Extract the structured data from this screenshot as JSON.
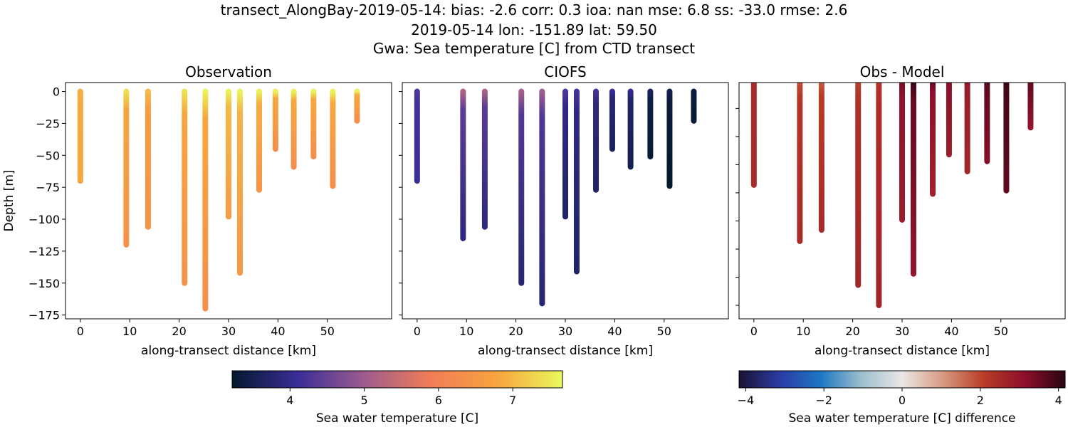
{
  "title": {
    "line1": "transect_AlongBay-2019-05-14: bias: -2.6  corr: 0.3  ioa: nan  mse: 6.8  ss: -33.0  rmse: 2.6",
    "line2": "2019-05-14 lon: -151.89 lat: 59.50",
    "line3": "Gwa: Sea temperature [C] from CTD transect"
  },
  "chart_data": [
    {
      "type": "scatter",
      "title": "Observation",
      "xlabel": "along-transect distance [km]",
      "ylabel": "Depth [m]",
      "xlim": [
        -3,
        63
      ],
      "ylim": [
        -178,
        7
      ],
      "xticks": [
        0,
        10,
        20,
        30,
        40,
        50
      ],
      "yticks": [
        0,
        -25,
        -50,
        -75,
        -100,
        -125,
        -150,
        -175
      ],
      "stations_km": [
        0,
        9.3,
        13.7,
        21.1,
        25.3,
        30.0,
        32.3,
        36.2,
        39.5,
        43.2,
        47.2,
        51.1,
        56.0
      ],
      "max_depth_m": [
        70,
        120,
        106,
        150,
        170,
        98,
        142,
        77,
        45,
        59,
        51,
        74,
        23
      ],
      "surface_value": [
        6.9,
        7.4,
        7.0,
        7.4,
        7.6,
        7.6,
        7.6,
        7.6,
        7.6,
        7.6,
        7.6,
        7.6,
        7.6
      ],
      "bottom_value": [
        6.8,
        6.4,
        6.4,
        6.4,
        6.3,
        6.6,
        6.5,
        6.4,
        6.3,
        6.3,
        6.3,
        6.3,
        6.3
      ]
    },
    {
      "type": "scatter",
      "title": "CIOFS",
      "xlabel": "along-transect distance [km]",
      "ylim": [
        -178,
        7
      ],
      "stations_km": [
        0,
        9.3,
        13.7,
        21.1,
        25.3,
        30.0,
        32.3,
        36.2,
        39.5,
        43.2,
        47.2,
        51.1,
        56.0
      ],
      "max_depth_m": [
        70,
        115,
        106,
        150,
        166,
        98,
        141,
        77,
        45,
        59,
        51,
        74,
        23
      ],
      "surface_value": [
        4.3,
        5.2,
        5.1,
        5.1,
        5.0,
        4.3,
        4.2,
        4.2,
        4.1,
        4.0,
        3.6,
        3.5,
        3.4
      ],
      "bottom_value": [
        4.1,
        3.9,
        3.9,
        3.8,
        3.8,
        3.7,
        3.7,
        3.7,
        3.6,
        3.5,
        3.3,
        3.2,
        3.3
      ]
    },
    {
      "type": "scatter",
      "title": "Obs - Model",
      "xlabel": "along-transect distance [km]",
      "ylim": [
        -187,
        23
      ],
      "yticks": [
        0,
        -25,
        -50,
        -75,
        -100,
        -125,
        -150,
        -175
      ],
      "stations_km": [
        0,
        9.3,
        13.7,
        21.1,
        25.3,
        30.0,
        32.3,
        36.2,
        39.5,
        43.2,
        47.2,
        51.1,
        56.0
      ],
      "max_depth_m": [
        68,
        118,
        108,
        157,
        175,
        99,
        147,
        76,
        41,
        56,
        47,
        73,
        17
      ],
      "surface_value": [
        2.5,
        1.8,
        1.6,
        2.0,
        2.2,
        3.5,
        4.3,
        3.8,
        3.6,
        3.2,
        4.2,
        4.3,
        4.4
      ],
      "bottom_value": [
        2.5,
        2.5,
        2.5,
        2.6,
        2.6,
        2.8,
        3.0,
        2.7,
        2.8,
        2.6,
        3.2,
        3.6,
        3.0
      ]
    }
  ],
  "colorbars": [
    {
      "label": "Sea water temperature [C]",
      "range": [
        3.22,
        7.67
      ],
      "ticks": [
        4,
        5,
        6,
        7
      ],
      "colormap": [
        "#03192e",
        "#3b2d97",
        "#9d5c8e",
        "#f17d56",
        "#f8a33f",
        "#e8fa5b"
      ]
    },
    {
      "label": "Sea water temperature [C] difference",
      "range": [
        -4.17,
        4.17
      ],
      "ticks": [
        -4,
        -2,
        0,
        2,
        4
      ],
      "tick_labels": [
        "−4",
        "−2",
        "0",
        "2",
        "4"
      ],
      "colormap": [
        "#1a1230",
        "#2c3ba6",
        "#1b77c3",
        "#9cbfcc",
        "#eae7e5",
        "#d79a82",
        "#b93d26",
        "#8d0f2b",
        "#2a0511"
      ]
    }
  ]
}
